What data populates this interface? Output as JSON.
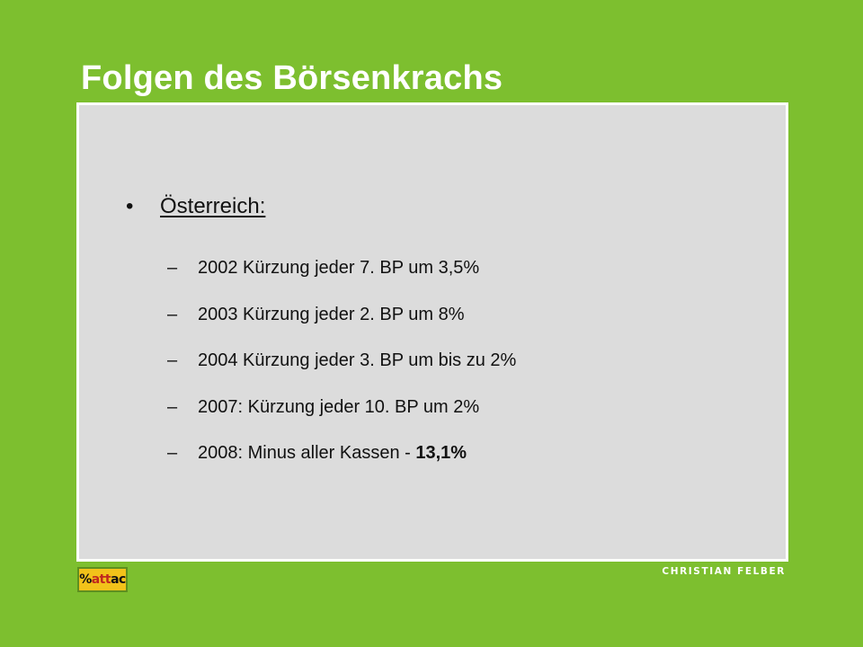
{
  "slide": {
    "title": "Folgen des Börsenkrachs",
    "bullet": {
      "marker": "•",
      "text": "Österreich:"
    },
    "sub_marker": "–",
    "sub_items": [
      {
        "text": "2002 Kürzung jeder 7. BP um 3,5%",
        "bold_part": ""
      },
      {
        "text": "2003 Kürzung jeder 2. BP um 8%",
        "bold_part": ""
      },
      {
        "text": "2004 Kürzung jeder 3. BP um bis zu 2%",
        "bold_part": ""
      },
      {
        "text": "2007: Kürzung jeder 10. BP um 2%",
        "bold_part": ""
      },
      {
        "text": "2008: Minus aller Kassen - ",
        "bold_part": "13,1%"
      }
    ]
  },
  "footer": {
    "logo": {
      "part1": "%",
      "part2": "att",
      "part3": "ac"
    },
    "author": "CHRISTIAN FELBER"
  },
  "colors": {
    "background": "#7dbf2f",
    "panel": "#dcdcdc",
    "logo": "#f2c21a"
  }
}
